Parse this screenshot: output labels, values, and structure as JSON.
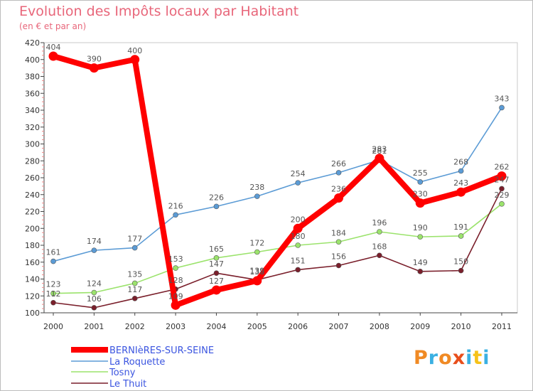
{
  "chart_data": {
    "type": "line",
    "title": "Evolution des Impôts locaux par Habitant",
    "subtitle": "(en € et par an)",
    "x": [
      "2000",
      "2001",
      "2002",
      "2003",
      "2004",
      "2005",
      "2006",
      "2007",
      "2008",
      "2009",
      "2010",
      "2011"
    ],
    "ylim": [
      100,
      420
    ],
    "yticks": [
      100,
      120,
      140,
      160,
      180,
      200,
      220,
      240,
      260,
      280,
      300,
      320,
      340,
      360,
      380,
      400,
      420
    ],
    "grid": false,
    "legend_position": "bottom-left",
    "series": [
      {
        "name": "BERNIèRES-SUR-SEINE",
        "color": "#ff0000",
        "values": [
          404,
          390,
          400,
          109,
          127,
          138,
          200,
          236,
          283,
          230,
          243,
          262
        ]
      },
      {
        "name": "La Roquette",
        "color": "#5b9bd5",
        "values": [
          161,
          174,
          177,
          216,
          226,
          238,
          254,
          266,
          281,
          255,
          268,
          343
        ]
      },
      {
        "name": "Tosny",
        "color": "#9be36c",
        "values": [
          123,
          124,
          135,
          153,
          165,
          172,
          180,
          184,
          196,
          190,
          191,
          229
        ]
      },
      {
        "name": "Le Thuit",
        "color": "#7a1f2b",
        "values": [
          112,
          106,
          117,
          128,
          147,
          139,
          151,
          156,
          168,
          149,
          150,
          247
        ]
      }
    ]
  },
  "branding": {
    "logo_text": "Proxiti",
    "logo_colors": [
      "#f08a24",
      "#3ab0e2",
      "#f08a24",
      "#e84e1b",
      "#3ab0e2",
      "#f6c21a",
      "#3ab0e2"
    ]
  }
}
